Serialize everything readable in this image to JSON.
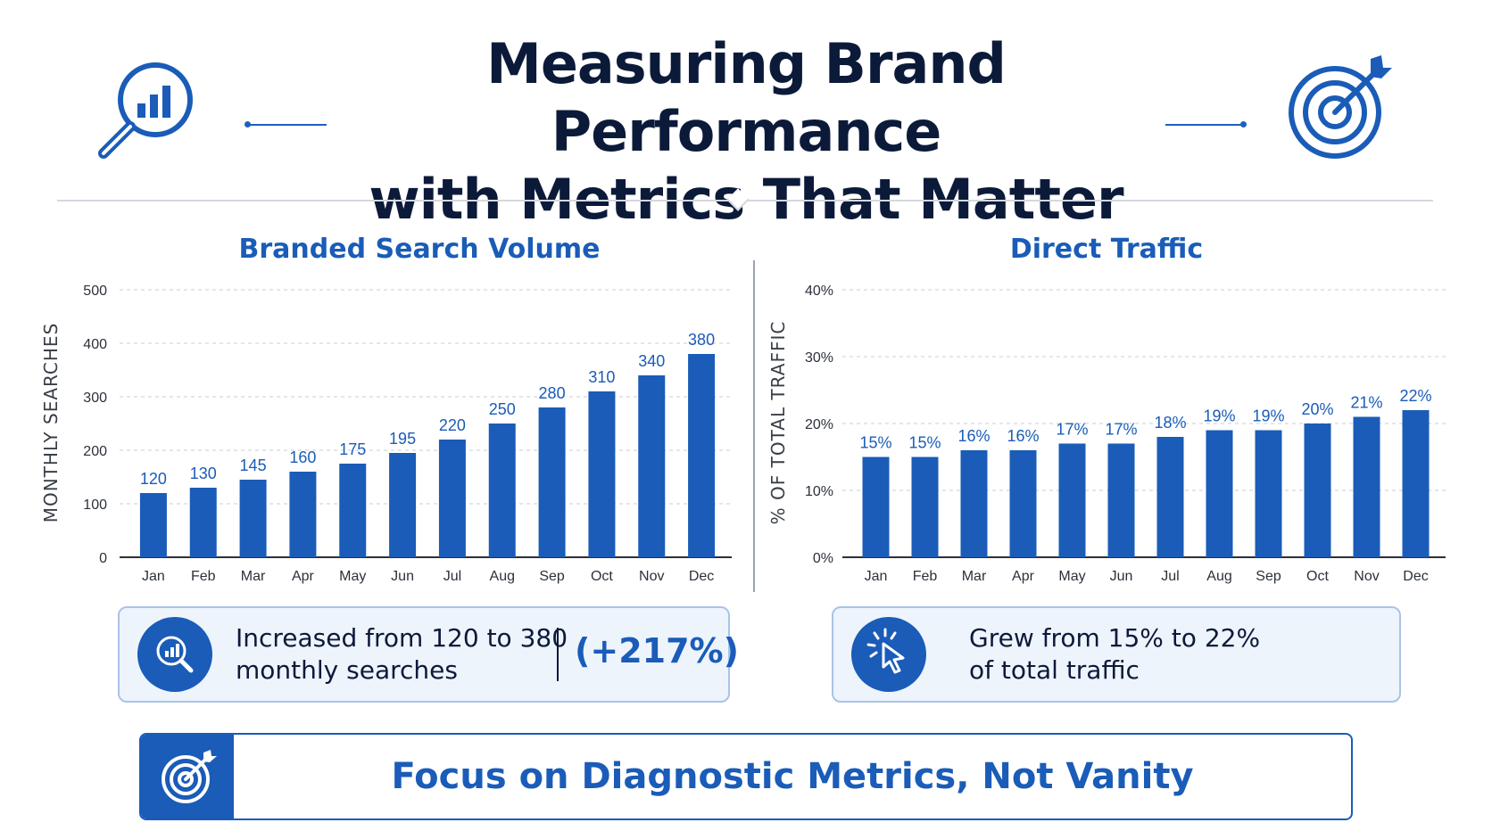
{
  "header": {
    "title_line1": "Measuring Brand Performance",
    "title_line2": "with Metrics That Matter",
    "left_icon": "magnifier-chart-icon",
    "right_icon": "target-arrow-icon"
  },
  "colors": {
    "accent": "#1a5cb8",
    "text": "#0c1a3a",
    "panel": "#eef4fc"
  },
  "chart_data": [
    {
      "type": "bar",
      "title": "Branded Search Volume",
      "ylabel": "MONTHLY SEARCHES",
      "xlabel": "",
      "categories": [
        "Jan",
        "Feb",
        "Mar",
        "Apr",
        "May",
        "Jun",
        "Jul",
        "Aug",
        "Sep",
        "Oct",
        "Nov",
        "Dec"
      ],
      "values": [
        120,
        130,
        145,
        160,
        175,
        195,
        220,
        250,
        280,
        310,
        340,
        380
      ],
      "value_labels": [
        "120",
        "130",
        "145",
        "160",
        "175",
        "195",
        "220",
        "250",
        "280",
        "310",
        "340",
        "380"
      ],
      "ylim": [
        0,
        500
      ],
      "yticks": [
        0,
        100,
        200,
        300,
        400,
        500
      ],
      "ytick_labels": [
        "0",
        "100",
        "200",
        "300",
        "400",
        "500"
      ],
      "grid": true
    },
    {
      "type": "bar",
      "title": "Direct Traffic",
      "ylabel": "% OF TOTAL TRAFFIC",
      "xlabel": "",
      "categories": [
        "Jan",
        "Feb",
        "Mar",
        "Apr",
        "May",
        "Jun",
        "Jul",
        "Aug",
        "Sep",
        "Oct",
        "Nov",
        "Dec"
      ],
      "values": [
        15,
        15,
        16,
        16,
        17,
        17,
        18,
        19,
        19,
        20,
        21,
        22
      ],
      "value_labels": [
        "15%",
        "15%",
        "16%",
        "16%",
        "17%",
        "17%",
        "18%",
        "19%",
        "19%",
        "20%",
        "21%",
        "22%"
      ],
      "ylim": [
        0,
        40
      ],
      "yticks": [
        0,
        10,
        20,
        30,
        40
      ],
      "ytick_labels": [
        "0%",
        "10%",
        "20%",
        "30%",
        "40%"
      ],
      "grid": true
    }
  ],
  "summaries": [
    {
      "icon": "magnifier-chart-icon",
      "line1": "Increased from 120 to 380",
      "line2": "monthly searches",
      "highlight": "(+217%)"
    },
    {
      "icon": "cursor-click-icon",
      "line1": "Grew from 15% to 22%",
      "line2": "of total traffic"
    }
  ],
  "footer": {
    "icon": "target-arrow-icon",
    "text": "Focus on Diagnostic Metrics, Not Vanity"
  }
}
